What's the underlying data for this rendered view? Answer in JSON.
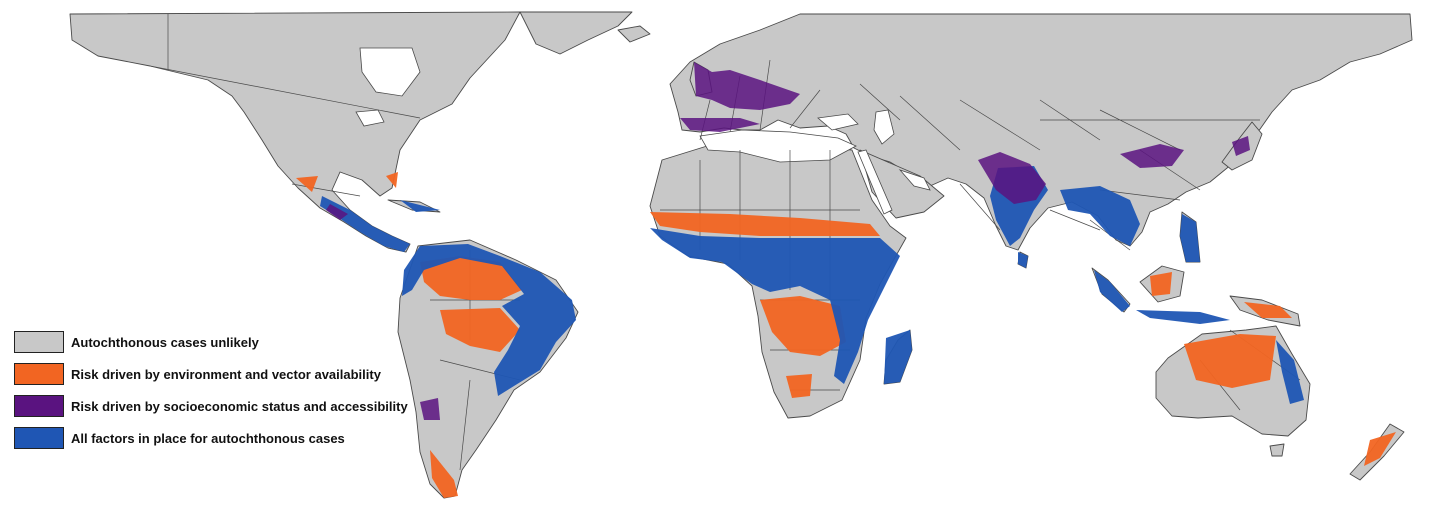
{
  "colors": {
    "unlikely": "#c8c8c8",
    "environment": "#f26522",
    "socioeconomic": "#5a1380",
    "all_factors": "#1f56b4",
    "border": "#4a4a4a",
    "ocean": "#ffffff"
  },
  "legend": {
    "placement": "bottom-left",
    "items": [
      {
        "label": "Autochthonous cases unlikely",
        "color": "#c8c8c8"
      },
      {
        "label": "Risk driven by environment and vector availability",
        "color": "#f26522"
      },
      {
        "label": "Risk driven by socioeconomic status and accessibility",
        "color": "#5a1380"
      },
      {
        "label": "All factors in place for autochthonous cases",
        "color": "#1f56b4"
      }
    ]
  }
}
